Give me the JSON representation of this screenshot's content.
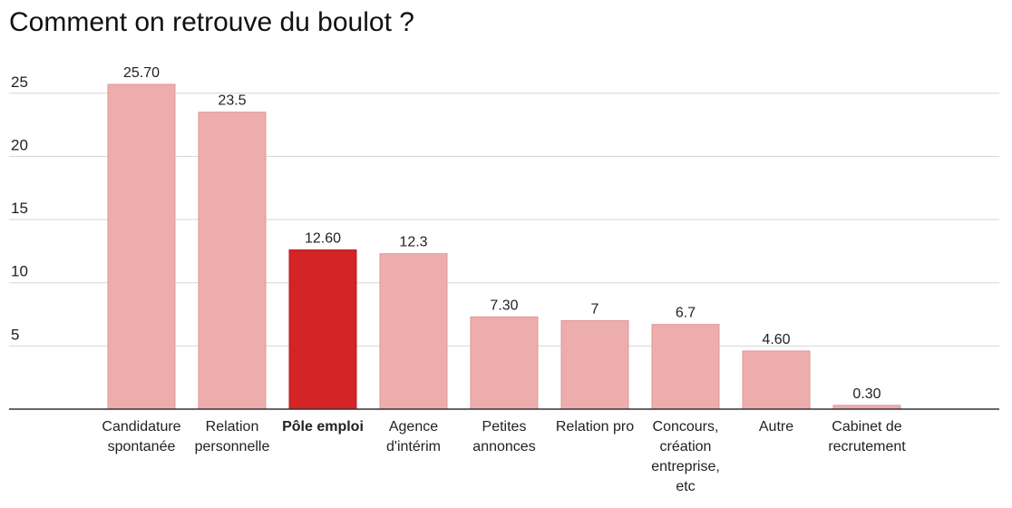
{
  "title": "Comment on retrouve du boulot ?",
  "chart_data": {
    "type": "bar",
    "title": "Comment on retrouve du boulot ?",
    "xlabel": "",
    "ylabel": "",
    "ylim": [
      0,
      25.7
    ],
    "yticks": [
      5,
      10,
      15,
      20,
      25
    ],
    "grid": true,
    "legend": "none",
    "categories": [
      [
        "Candidature",
        "spontanée"
      ],
      [
        "Relation",
        "personnelle"
      ],
      [
        "Pôle emploi"
      ],
      [
        "Agence",
        "d'intérim"
      ],
      [
        "Petites",
        "annonces"
      ],
      [
        "Relation pro"
      ],
      [
        "Concours,",
        "création",
        "entreprise,",
        "etc"
      ],
      [
        "Autre"
      ],
      [
        "Cabinet de",
        "recrutement"
      ]
    ],
    "values": [
      25.7,
      23.5,
      12.6,
      12.3,
      7.3,
      7,
      6.7,
      4.6,
      0.3
    ],
    "value_labels": [
      "25.70",
      "23.5",
      "12.60",
      "12.3",
      "7.30",
      "7",
      "6.7",
      "4.60",
      "0.30"
    ],
    "highlight_index": 2,
    "colors": {
      "bar": "#eeadad",
      "bar_stroke": "#e09797",
      "highlight": "#d42426",
      "highlight_stroke": "#b81d20",
      "grid": "#d6d6d6",
      "axis": "#333333",
      "text": "#222222"
    }
  }
}
